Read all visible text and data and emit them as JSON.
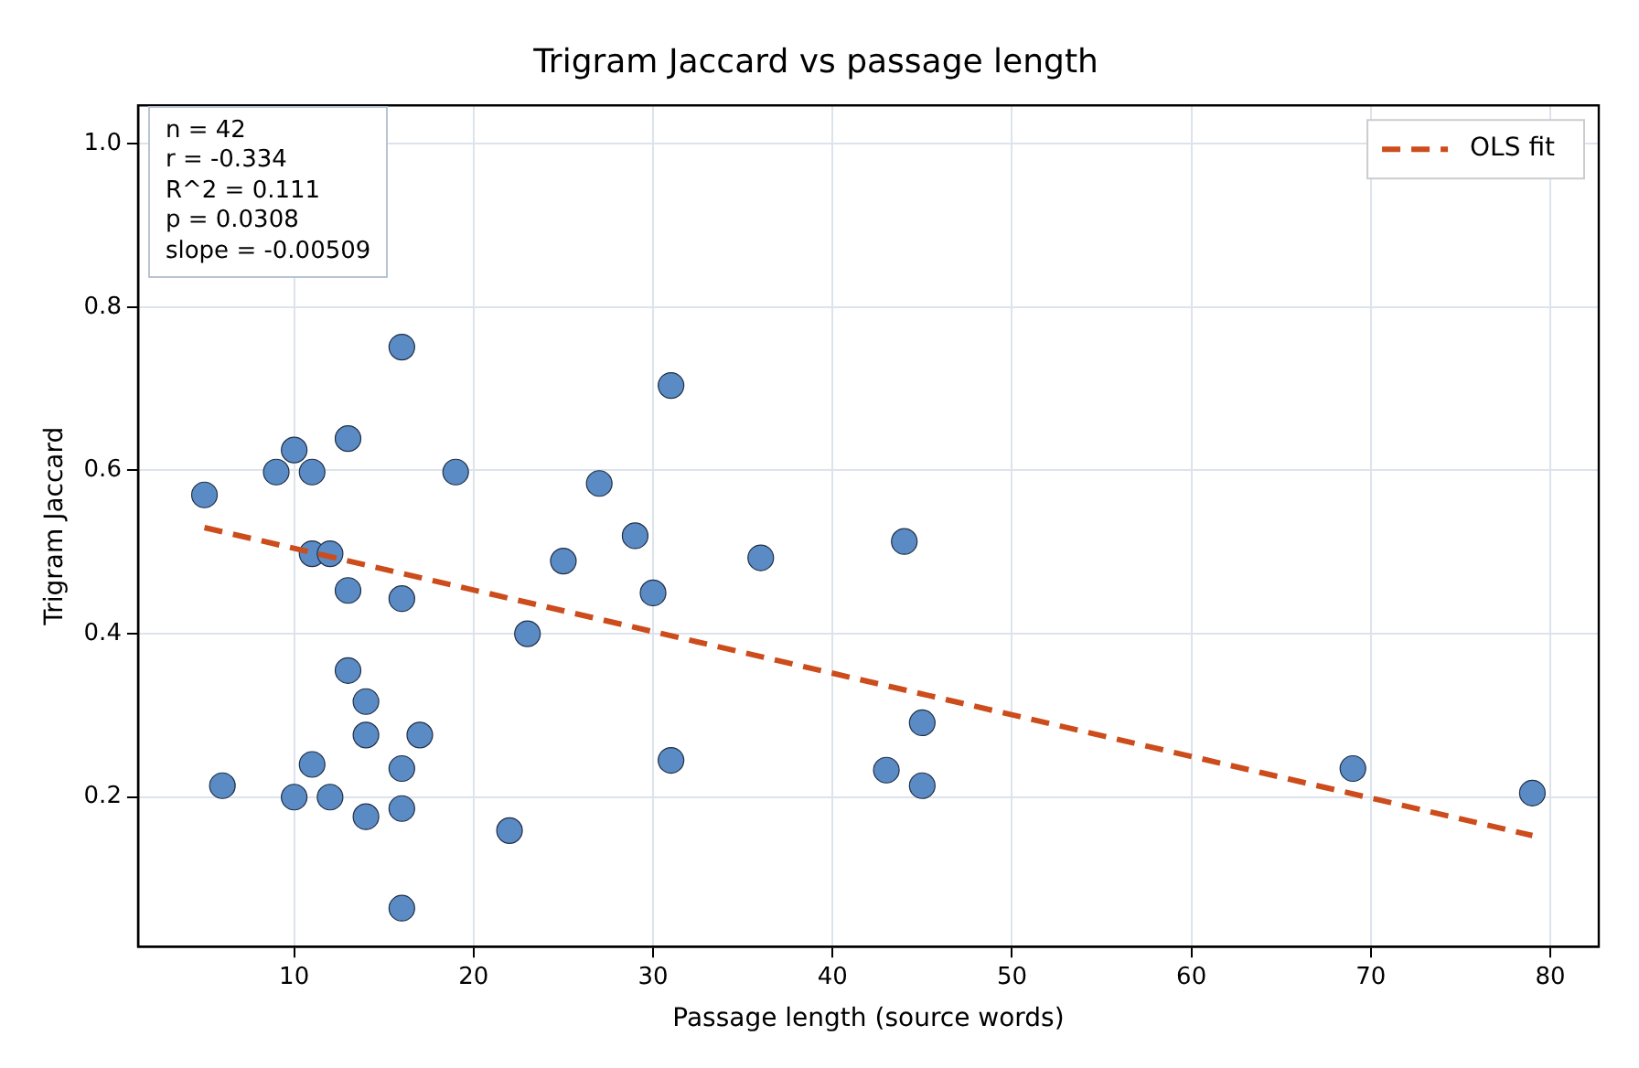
{
  "chart_data": {
    "type": "scatter",
    "title": "Trigram Jaccard vs passage length",
    "xlabel": "Passage length (source words)",
    "ylabel": "Trigram Jaccard",
    "xlim": [
      1.3,
      82.7
    ],
    "xticks": [
      10,
      20,
      30,
      40,
      50,
      60,
      70,
      80
    ],
    "ylim": [
      0.017,
      1.047
    ],
    "yticks": [
      0.2,
      0.4,
      0.6,
      0.8,
      {
        "value": 1,
        "label": "1.0"
      }
    ],
    "grid": true,
    "legend": "top right",
    "annotations": [
      "n = 42",
      "r = -0.334",
      "R^2 = 0.111",
      "p = 0.0308",
      "slope = -0.00509"
    ],
    "series": [
      {
        "type": "scatter",
        "color": "#5b8bc5",
        "marker": "circle",
        "x": [
          5,
          6,
          9,
          10,
          10,
          11,
          11,
          11,
          12,
          12,
          13,
          13,
          13,
          14,
          14,
          14,
          16,
          16,
          16,
          16,
          16,
          17,
          19,
          22,
          23,
          25,
          27,
          29,
          30,
          31,
          31,
          36,
          43,
          44,
          45,
          45,
          69,
          79
        ],
        "values": [
          0.57,
          0.214,
          0.598,
          0.625,
          0.2,
          0.598,
          0.498,
          0.24,
          0.498,
          0.2,
          0.639,
          0.453,
          0.355,
          0.317,
          0.276,
          0.176,
          0.751,
          0.443,
          0.235,
          0.186,
          0.064,
          0.276,
          0.598,
          0.159,
          0.4,
          0.489,
          0.584,
          0.52,
          0.45,
          0.704,
          0.245,
          0.493,
          0.233,
          0.513,
          0.291,
          0.214,
          0.235,
          0.205
        ]
      },
      {
        "type": "line",
        "name": "OLS fit",
        "color": "#cc4c1c",
        "line_style": "dashed",
        "x": [
          5,
          79
        ],
        "values": [
          0.53,
          0.153
        ]
      }
    ]
  }
}
